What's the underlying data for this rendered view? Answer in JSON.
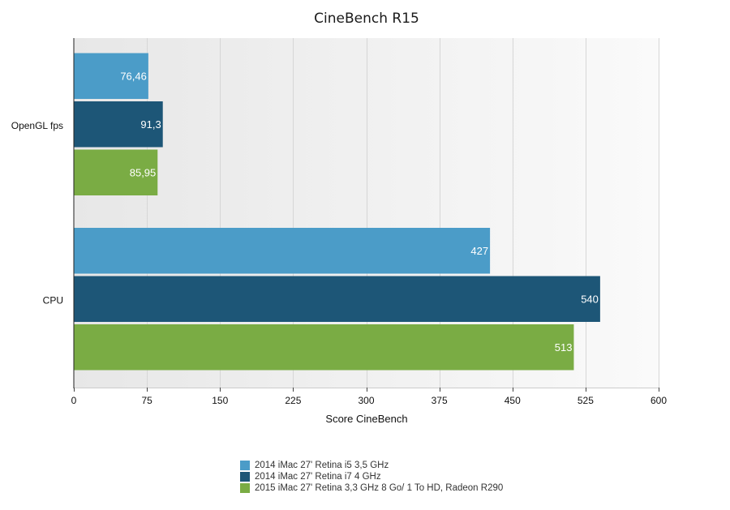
{
  "chart_data": {
    "type": "bar",
    "orientation": "horizontal",
    "title": "CineBench R15",
    "xlabel": "Score CineBench",
    "ylabel": "",
    "xlim": [
      0,
      600
    ],
    "x_ticks": [
      0,
      75,
      150,
      225,
      300,
      375,
      450,
      525,
      600
    ],
    "x_tick_labels": [
      "0",
      "75",
      "150",
      "225",
      "300",
      "375",
      "450",
      "525",
      "600"
    ],
    "grid": true,
    "legend_position": "bottom",
    "categories": [
      "OpenGL fps",
      "CPU"
    ],
    "series": [
      {
        "name": "2014 iMac 27' Retina i5 3,5 GHz",
        "color": "#4b9cc8",
        "values": [
          76.46,
          427
        ],
        "value_labels": [
          "76,46",
          "427"
        ]
      },
      {
        "name": "2014 iMac 27' Retina i7 4 GHz",
        "color": "#1d5677",
        "values": [
          91.3,
          540
        ],
        "value_labels": [
          "91,3",
          "540"
        ]
      },
      {
        "name": "2015 iMac 27' Retina 3,3 GHz 8 Go/ 1 To HD, Radeon R290",
        "color": "#7aac44",
        "values": [
          85.95,
          513
        ],
        "value_labels": [
          "85,95",
          "513"
        ]
      }
    ]
  }
}
